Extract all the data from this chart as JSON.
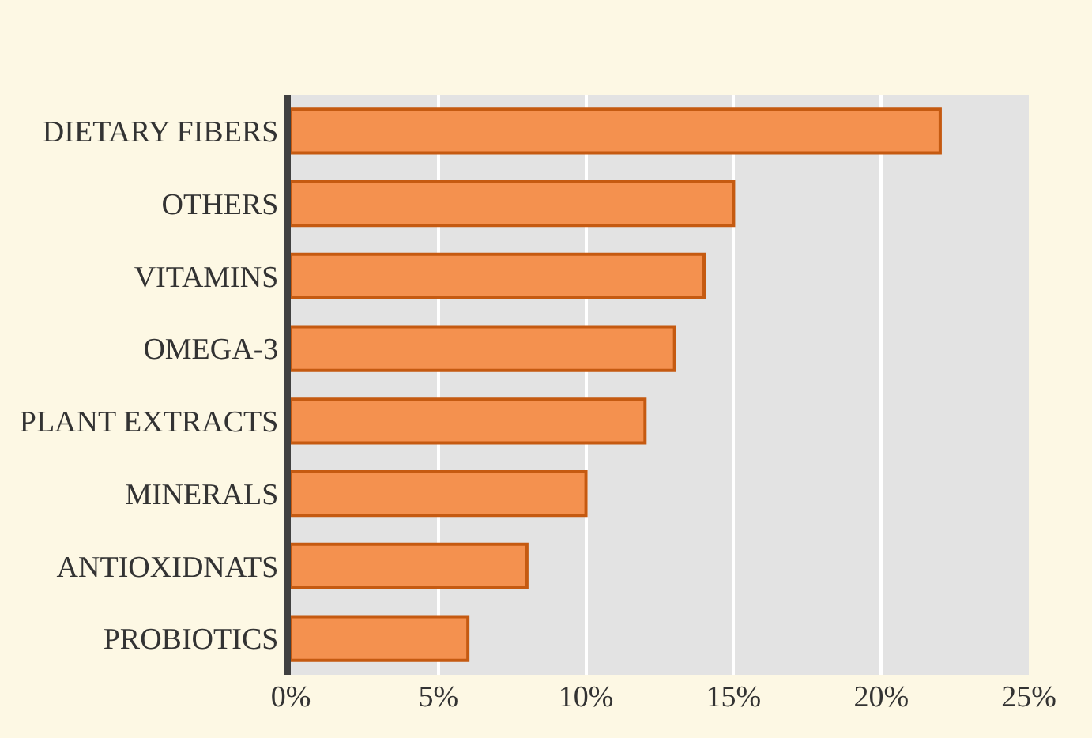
{
  "chart_data": {
    "type": "bar",
    "orientation": "horizontal",
    "categories": [
      "DIETARY FIBERS",
      "OTHERS",
      "VITAMINS",
      "OMEGA-3",
      "PLANT EXTRACTS",
      "MINERALS",
      "ANTIOXIDNATS",
      "PROBIOTICS"
    ],
    "values": [
      22,
      15,
      14,
      13,
      12,
      10,
      8,
      6
    ],
    "color": "#f4914f",
    "xlim": [
      0,
      25
    ],
    "xticks": [
      {
        "value": 0,
        "label": "0%"
      },
      {
        "value": 5,
        "label": "5%"
      },
      {
        "value": 10,
        "label": "10%"
      },
      {
        "value": 15,
        "label": "15%"
      },
      {
        "value": 20,
        "label": "20%"
      },
      {
        "value": 25,
        "label": "25%"
      }
    ],
    "grid": "x"
  }
}
